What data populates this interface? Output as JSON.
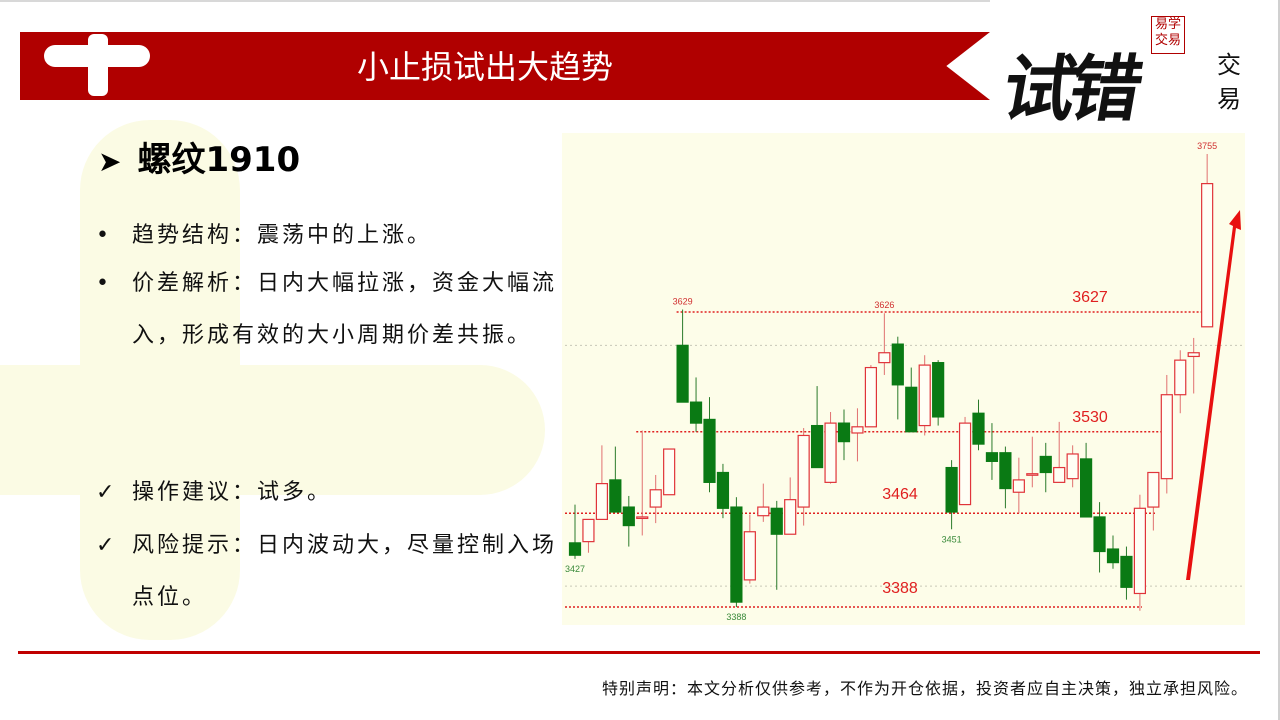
{
  "header": {
    "title": "小止损试出大趋势"
  },
  "logo": {
    "main": "试错",
    "side": "交易",
    "seal": "易学交易"
  },
  "content": {
    "heading": "螺纹1910",
    "bullets": [
      {
        "marker": "•",
        "text": "趋势结构：震荡中的上涨。"
      },
      {
        "marker": "•",
        "text": "价差解析：日内大幅拉涨，资金大幅流入，形成有效的大小周期价差共振。"
      }
    ],
    "checks": [
      {
        "marker": "✓",
        "text": "操作建议：试多。"
      },
      {
        "marker": "✓",
        "text": "风险提示：日内波动大，尽量控制入场点位。"
      }
    ]
  },
  "footer": {
    "disclaimer": "特别声明：本文分析仅供参考，不作为开仓依据，投资者应自主决策，独立承担风险。"
  },
  "chart_data": {
    "type": "candlestick",
    "colors": {
      "up": "#e0343a",
      "down": "#0a7a14",
      "level": "#e02020",
      "arrow": "#e81010",
      "background": "#fdfde9"
    },
    "candles": [
      [
        3440,
        3471,
        3427,
        3430
      ],
      [
        3441,
        3459,
        3432,
        3459
      ],
      [
        3459,
        3519,
        3459,
        3488
      ],
      [
        3491,
        3518,
        3465,
        3465
      ],
      [
        3469,
        3478,
        3437,
        3454
      ],
      [
        3461,
        3531,
        3446,
        3461
      ],
      [
        3469,
        3495,
        3456,
        3483
      ],
      [
        3479,
        3516,
        3479,
        3516
      ],
      [
        3600,
        3629,
        3554,
        3554
      ],
      [
        3554,
        3574,
        3530,
        3537
      ],
      [
        3540,
        3558,
        3481,
        3489
      ],
      [
        3497,
        3504,
        3460,
        3468
      ],
      [
        3469,
        3477,
        3388,
        3392
      ],
      [
        3410,
        3463,
        3407,
        3449
      ],
      [
        3462,
        3488,
        3457,
        3469
      ],
      [
        3468,
        3474,
        3402,
        3447
      ],
      [
        3447,
        3493,
        3447,
        3475
      ],
      [
        3469,
        3533,
        3454,
        3527
      ],
      [
        3535,
        3567,
        3501,
        3501
      ],
      [
        3489,
        3546,
        3488,
        3537
      ],
      [
        3537,
        3548,
        3507,
        3522
      ],
      [
        3529,
        3549,
        3506,
        3534
      ],
      [
        3534,
        3584,
        3534,
        3582
      ],
      [
        3586,
        3626,
        3576,
        3594
      ],
      [
        3601,
        3607,
        3540,
        3568
      ],
      [
        3566,
        3582,
        3530,
        3530
      ],
      [
        3535,
        3592,
        3527,
        3584
      ],
      [
        3586,
        3588,
        3535,
        3542
      ],
      [
        3501,
        3507,
        3451,
        3465
      ],
      [
        3471,
        3542,
        3471,
        3537
      ],
      [
        3545,
        3556,
        3515,
        3520
      ],
      [
        3513,
        3537,
        3491,
        3506
      ],
      [
        3513,
        3518,
        3468,
        3484
      ],
      [
        3481,
        3509,
        3464,
        3491
      ],
      [
        3496,
        3526,
        3485,
        3496
      ],
      [
        3510,
        3521,
        3481,
        3497
      ],
      [
        3489,
        3538,
        3489,
        3501
      ],
      [
        3492,
        3519,
        3485,
        3512
      ],
      [
        3508,
        3521,
        3461,
        3461
      ],
      [
        3461,
        3473,
        3416,
        3433
      ],
      [
        3435,
        3446,
        3419,
        3424
      ],
      [
        3429,
        3437,
        3394,
        3404
      ],
      [
        3399,
        3479,
        3385,
        3468
      ],
      [
        3469,
        3497,
        3450,
        3497
      ],
      [
        3492,
        3576,
        3480,
        3560
      ],
      [
        3560,
        3596,
        3545,
        3588
      ],
      [
        3591,
        3606,
        3561,
        3594
      ],
      [
        3615,
        3755,
        3615,
        3731
      ]
    ],
    "candle_fields": [
      "open",
      "high",
      "low",
      "close"
    ],
    "extreme_labels": [
      {
        "index": 0,
        "value": "3427",
        "pos": "below"
      },
      {
        "index": 8,
        "value": "3629",
        "pos": "above"
      },
      {
        "index": 12,
        "value": "3388",
        "pos": "below"
      },
      {
        "index": 23,
        "value": "3626",
        "pos": "above"
      },
      {
        "index": 28,
        "value": "3451",
        "pos": "below"
      },
      {
        "index": 47,
        "value": "3755",
        "pos": "above"
      }
    ],
    "levels": [
      {
        "value": 3627,
        "label": "3627",
        "from": 8,
        "to": 47
      },
      {
        "value": 3530,
        "label": "3530",
        "from": 5,
        "to": 44
      },
      {
        "value": 3464,
        "label": "3464",
        "from": 0,
        "to": 43
      },
      {
        "value": 3388,
        "label": "3388",
        "from": 0,
        "to": 42
      }
    ],
    "gridlines": [
      3600,
      3405
    ],
    "annotation": "red arrow pointing up (uptrend)"
  }
}
